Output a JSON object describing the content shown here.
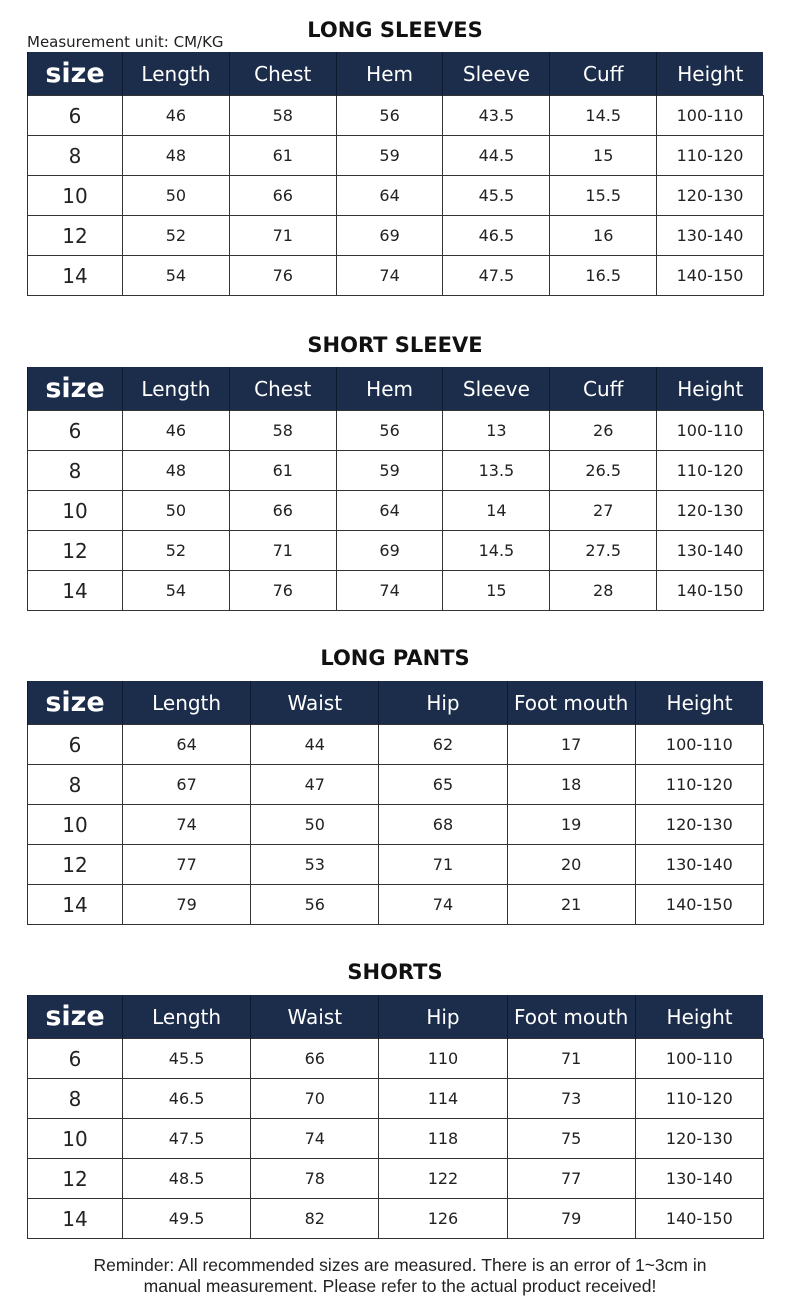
{
  "unit_label": "Measurement unit: CM/KG",
  "tables": [
    {
      "title": "LONG SLEEVES",
      "headers": [
        "size",
        "Length",
        "Chest",
        "Hem",
        "Sleeve",
        "Cuff",
        "Height"
      ],
      "rows": [
        [
          "6",
          "46",
          "58",
          "56",
          "43.5",
          "14.5",
          "100-110"
        ],
        [
          "8",
          "48",
          "61",
          "59",
          "44.5",
          "15",
          "110-120"
        ],
        [
          "10",
          "50",
          "66",
          "64",
          "45.5",
          "15.5",
          "120-130"
        ],
        [
          "12",
          "52",
          "71",
          "69",
          "46.5",
          "16",
          "130-140"
        ],
        [
          "14",
          "54",
          "76",
          "74",
          "47.5",
          "16.5",
          "140-150"
        ]
      ]
    },
    {
      "title": "SHORT SLEEVE",
      "headers": [
        "size",
        "Length",
        "Chest",
        "Hem",
        "Sleeve",
        "Cuff",
        "Height"
      ],
      "rows": [
        [
          "6",
          "46",
          "58",
          "56",
          "13",
          "26",
          "100-110"
        ],
        [
          "8",
          "48",
          "61",
          "59",
          "13.5",
          "26.5",
          "110-120"
        ],
        [
          "10",
          "50",
          "66",
          "64",
          "14",
          "27",
          "120-130"
        ],
        [
          "12",
          "52",
          "71",
          "69",
          "14.5",
          "27.5",
          "130-140"
        ],
        [
          "14",
          "54",
          "76",
          "74",
          "15",
          "28",
          "140-150"
        ]
      ]
    },
    {
      "title": "LONG PANTS",
      "headers": [
        "size",
        "Length",
        "Waist",
        "Hip",
        "Foot mouth",
        "Height"
      ],
      "rows": [
        [
          "6",
          "64",
          "44",
          "62",
          "17",
          "100-110"
        ],
        [
          "8",
          "67",
          "47",
          "65",
          "18",
          "110-120"
        ],
        [
          "10",
          "74",
          "50",
          "68",
          "19",
          "120-130"
        ],
        [
          "12",
          "77",
          "53",
          "71",
          "20",
          "130-140"
        ],
        [
          "14",
          "79",
          "56",
          "74",
          "21",
          "140-150"
        ]
      ]
    },
    {
      "title": "SHORTS",
      "headers": [
        "size",
        "Length",
        "Waist",
        "Hip",
        "Foot mouth",
        "Height"
      ],
      "rows": [
        [
          "6",
          "45.5",
          "66",
          "110",
          "71",
          "100-110"
        ],
        [
          "8",
          "46.5",
          "70",
          "114",
          "73",
          "110-120"
        ],
        [
          "10",
          "47.5",
          "74",
          "118",
          "75",
          "120-130"
        ],
        [
          "12",
          "48.5",
          "78",
          "122",
          "77",
          "130-140"
        ],
        [
          "14",
          "49.5",
          "82",
          "126",
          "79",
          "140-150"
        ]
      ]
    }
  ],
  "reminder_line1": "Reminder: All recommended sizes are measured. There is an error of 1~3cm in",
  "reminder_line2": "manual measurement. Please refer to the actual product received!",
  "colors": {
    "header_bg": "#1b2d4b",
    "header_text": "#ffffff"
  }
}
